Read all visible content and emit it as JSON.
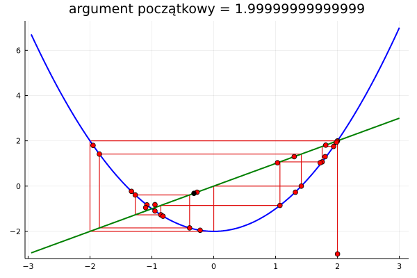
{
  "chart_data": {
    "type": "line",
    "title": "argument początkowy = 1.99999999999999",
    "xlabel": "",
    "ylabel": "",
    "xlim": [
      -3.05,
      3.15
    ],
    "ylim": [
      -3.2,
      7.3
    ],
    "grid": true,
    "legend": "none",
    "x_ticks": [
      -3,
      -2,
      -1,
      0,
      1,
      2,
      3
    ],
    "y_ticks": [
      -2,
      0,
      2,
      4,
      6
    ],
    "x_tick_labels": [
      "−3",
      "−2",
      "−1",
      "0",
      "1",
      "2",
      "3"
    ],
    "y_tick_labels": [
      "−2",
      "0",
      "2",
      "4",
      "6"
    ],
    "series": [
      {
        "kind": "function",
        "formula": "x^2 - 2",
        "x_range": [
          -2.95,
          3.0
        ],
        "color": "#0000ff"
      },
      {
        "kind": "function",
        "formula": "x",
        "x_range": [
          -2.95,
          3.0
        ],
        "color": "#008000"
      },
      {
        "kind": "cobweb",
        "color": "#e01010",
        "x": [
          1.999,
          1.999,
          1.996,
          1.996,
          1.984,
          1.984,
          1.937,
          1.937,
          1.752,
          1.752,
          1.07,
          1.07,
          -0.855,
          -0.855,
          -1.269,
          -1.269,
          -0.39,
          -0.39,
          -1.848,
          -1.848,
          1.415,
          1.415,
          0.0,
          0.0,
          -2.0,
          -2.0,
          2.0
        ],
        "y": [
          -3.0,
          1.996,
          1.996,
          1.984,
          1.984,
          1.937,
          1.937,
          1.752,
          1.752,
          1.07,
          1.07,
          -0.855,
          -0.855,
          -1.269,
          -1.269,
          -0.39,
          -0.39,
          -1.848,
          -1.848,
          1.415,
          1.415,
          0.0,
          0.0,
          -2.0,
          -2.0,
          2.0,
          2.0
        ]
      },
      {
        "kind": "iterates",
        "color": "#ff0000",
        "x": [
          2.0,
          1.999,
          1.996,
          1.984,
          1.937,
          1.81,
          1.752,
          1.3,
          1.07,
          1.03,
          -0.22,
          -0.27,
          -0.855,
          -1.08,
          -1.269,
          -1.33,
          -0.39,
          -1.848,
          -1.95,
          1.415,
          1.8,
          -0.95,
          -1.1,
          -0.95,
          -0.82,
          1.32,
          1.72
        ],
        "y": [
          -3.0,
          1.996,
          1.984,
          1.937,
          1.752,
          1.81,
          1.07,
          1.3,
          -0.855,
          1.03,
          -1.95,
          -0.27,
          -1.269,
          -0.83,
          -0.39,
          -0.23,
          -1.848,
          1.415,
          1.8,
          0.0,
          1.3,
          -1.1,
          -0.95,
          -0.82,
          -1.33,
          -0.27,
          1.03
        ]
      },
      {
        "kind": "fixed-point",
        "color": "#000000",
        "x": [
          -0.32
        ],
        "y": [
          -0.32
        ]
      }
    ]
  }
}
